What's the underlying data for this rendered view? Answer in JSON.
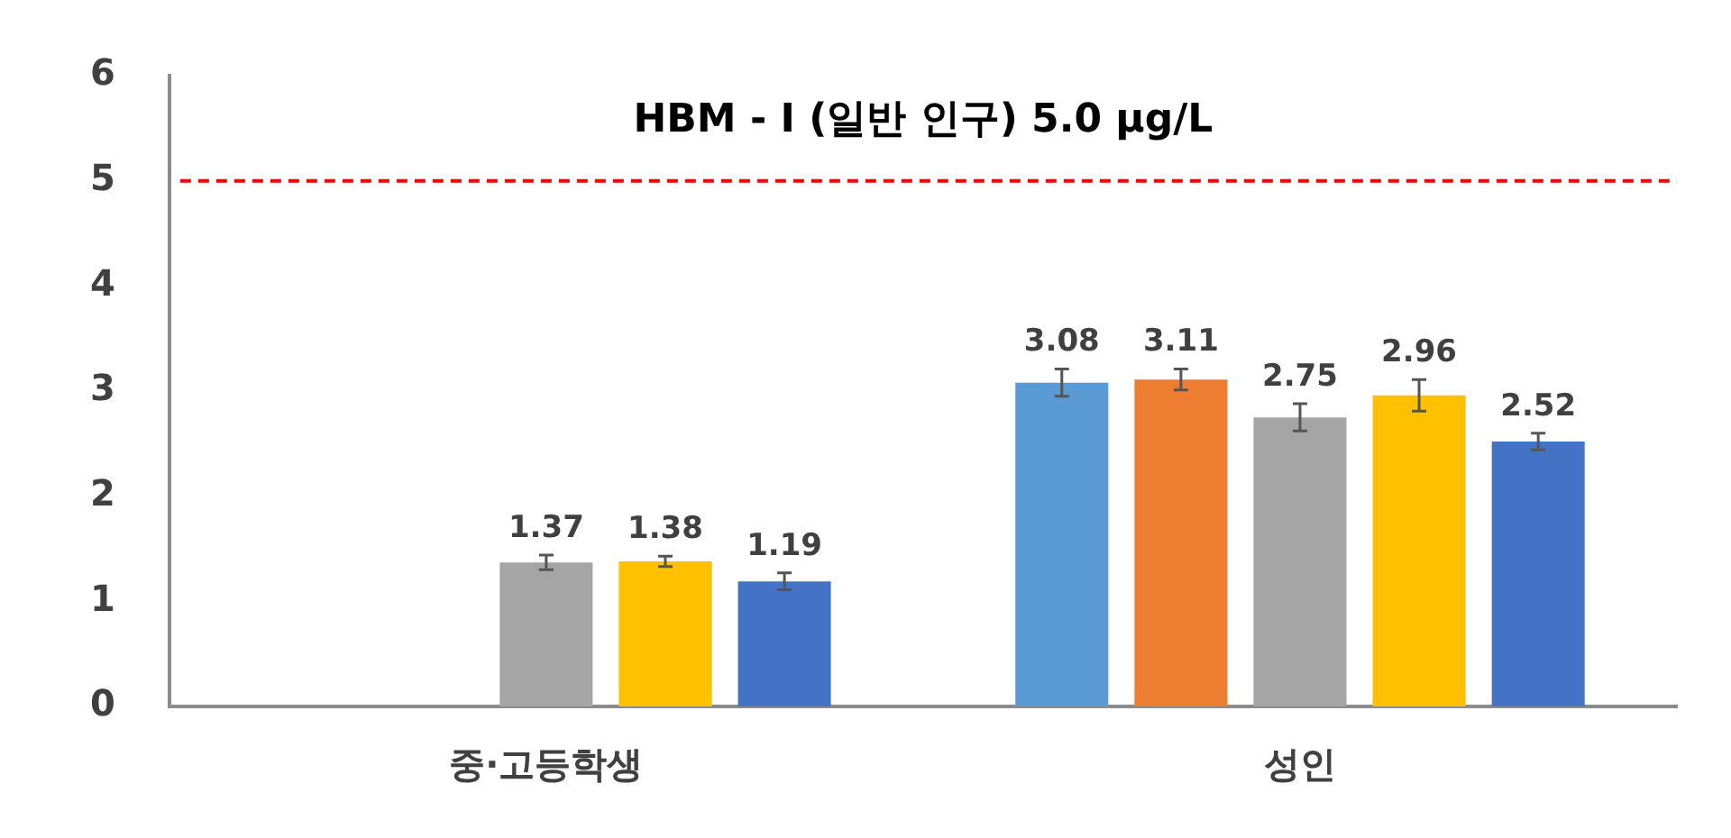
{
  "chart_data": {
    "type": "bar",
    "categories": [
      "중·고등학생",
      "성인"
    ],
    "series": [
      {
        "color": "#5b9bd5",
        "values": [
          null,
          3.08
        ],
        "errors": [
          null,
          0.13
        ]
      },
      {
        "color": "#ed7d31",
        "values": [
          null,
          3.11
        ],
        "errors": [
          null,
          0.1
        ]
      },
      {
        "color": "#a5a5a5",
        "values": [
          1.37,
          2.75
        ],
        "errors": [
          0.07,
          0.13
        ]
      },
      {
        "color": "#ffc000",
        "values": [
          1.38,
          2.96
        ],
        "errors": [
          0.05,
          0.15
        ]
      },
      {
        "color": "#4472c4",
        "values": [
          1.19,
          2.52
        ],
        "errors": [
          0.08,
          0.08
        ]
      }
    ],
    "ylim": [
      0,
      6
    ],
    "yticks": [
      0,
      1,
      2,
      3,
      4,
      5,
      6
    ],
    "ref_lines": [
      {
        "axis": "y",
        "value": 5,
        "label": "HBM - Ⅰ (일반 인구) 5.0 μg/L",
        "color": "#ff0000",
        "line_style": "dashed"
      }
    ],
    "data_labels": true,
    "grid": false,
    "legend": false
  }
}
